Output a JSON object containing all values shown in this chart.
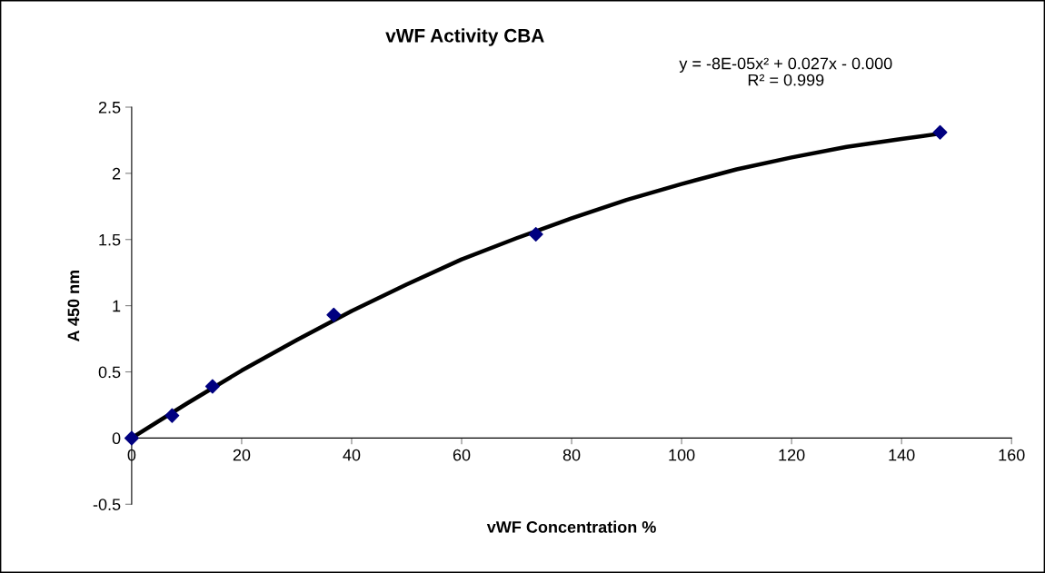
{
  "chart_data": {
    "type": "scatter",
    "title": "vWF Activity CBA",
    "xlabel": "vWF Concentration %",
    "ylabel": "A 450 nm",
    "annotations": [
      "y = -8E-05x² + 0.027x - 0.000\nR² = 0.999"
    ],
    "xlim": [
      0,
      160
    ],
    "xticks": [
      0,
      20,
      40,
      60,
      80,
      100,
      120,
      140,
      160
    ],
    "ylim": [
      -0.5,
      2.5
    ],
    "yticks": [
      -0.5,
      0,
      0.5,
      1,
      1.5,
      2,
      2.5
    ],
    "grid": false,
    "legend": false,
    "series": [
      {
        "color": "#000080",
        "marker": "diamond",
        "x": [
          0,
          7.35,
          14.7,
          36.75,
          73.5,
          147
        ],
        "values": [
          0,
          0.17,
          0.39,
          0.93,
          1.54,
          2.31
        ]
      },
      {
        "type": "line",
        "color": "#000000",
        "marker": "none",
        "line_style": "solid",
        "x": [
          0,
          10,
          20,
          30,
          40,
          50,
          60,
          70,
          80,
          90,
          100,
          110,
          120,
          130,
          140,
          147
        ],
        "values": [
          0,
          0.26,
          0.51,
          0.74,
          0.96,
          1.16,
          1.35,
          1.51,
          1.66,
          1.8,
          1.92,
          2.03,
          2.12,
          2.2,
          2.26,
          2.3
        ]
      }
    ]
  }
}
